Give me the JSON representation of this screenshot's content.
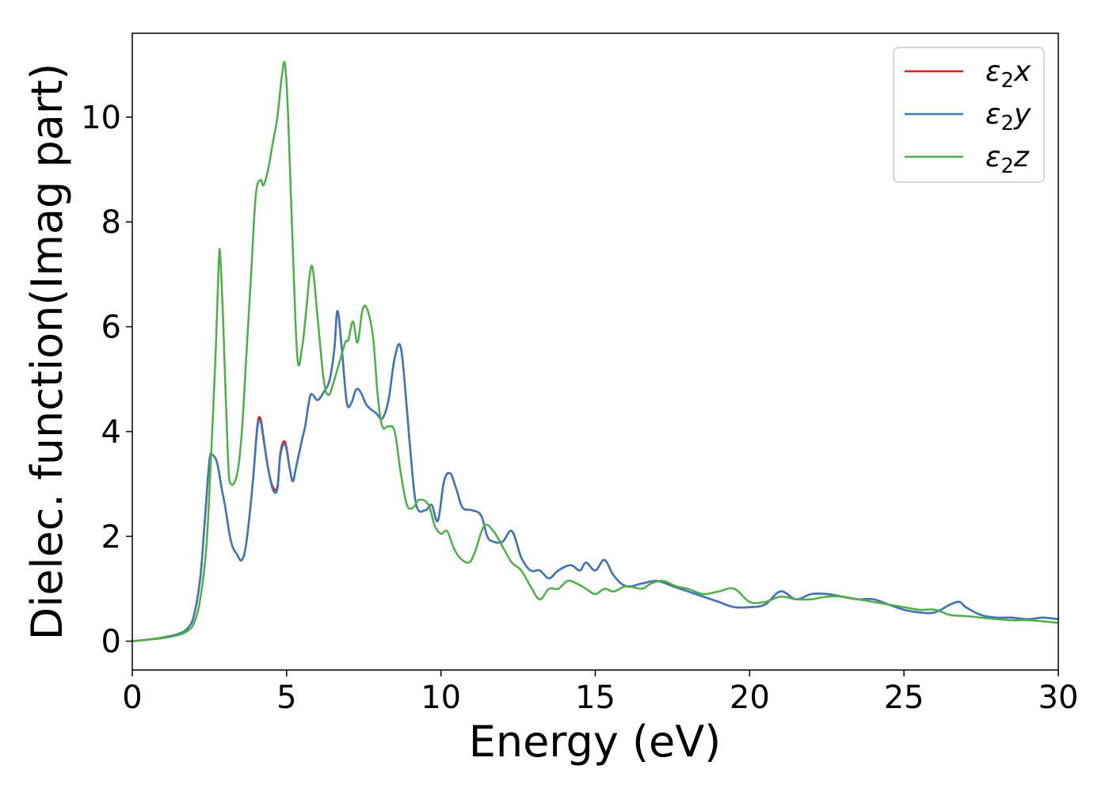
{
  "chart_data": {
    "type": "line",
    "title": "",
    "xlabel": "Energy (eV)",
    "ylabel": "Dielec. function(Imag part)",
    "xlim": [
      0,
      30
    ],
    "ylim": [
      -0.55,
      11.6
    ],
    "xticks": [
      0,
      5,
      10,
      15,
      20,
      25,
      30
    ],
    "yticks": [
      0,
      2,
      4,
      6,
      8,
      10
    ],
    "grid": false,
    "legend_position": "top-right",
    "series": [
      {
        "name": "ε2x",
        "legend_base": "ε",
        "legend_sub": "2",
        "legend_suffix": "x",
        "color": "#e41a1c",
        "x": [
          0,
          0.5,
          1.0,
          1.5,
          1.8,
          2.0,
          2.2,
          2.35,
          2.5,
          2.6,
          2.75,
          2.9,
          3.0,
          3.2,
          3.4,
          3.55,
          3.7,
          3.9,
          4.05,
          4.15,
          4.25,
          4.4,
          4.55,
          4.7,
          4.8,
          4.95,
          5.1,
          5.2,
          5.3,
          5.5,
          5.6,
          5.75,
          5.85,
          6.0,
          6.2,
          6.4,
          6.55,
          6.65,
          6.8,
          6.95,
          7.1,
          7.25,
          7.4,
          7.6,
          7.9,
          8.1,
          8.3,
          8.5,
          8.7,
          8.9,
          9.0,
          9.2,
          9.5,
          9.7,
          9.9,
          10.1,
          10.3,
          10.5,
          10.7,
          11.0,
          11.3,
          11.5,
          11.7,
          12.0,
          12.3,
          12.6,
          12.9,
          13.2,
          13.5,
          13.8,
          14.2,
          14.5,
          14.7,
          15.0,
          15.3,
          15.6,
          16.0,
          16.5,
          17.0,
          17.5,
          18.0,
          18.5,
          19.0,
          19.5,
          20.0,
          20.5,
          21.0,
          21.5,
          22.0,
          22.5,
          23.0,
          23.5,
          24.0,
          24.5,
          25.0,
          25.5,
          26.0,
          26.5,
          26.8,
          27.0,
          27.5,
          28.0,
          28.5,
          29.0,
          29.5,
          30.0
        ],
        "values": [
          0.0,
          0.03,
          0.07,
          0.14,
          0.25,
          0.5,
          1.2,
          2.3,
          3.45,
          3.55,
          3.4,
          2.9,
          2.6,
          1.9,
          1.65,
          1.55,
          1.9,
          3.0,
          4.1,
          4.25,
          3.9,
          3.3,
          2.95,
          2.95,
          3.6,
          3.8,
          3.3,
          3.05,
          3.3,
          3.85,
          4.1,
          4.65,
          4.7,
          4.6,
          4.75,
          5.0,
          5.6,
          6.3,
          5.5,
          4.55,
          4.55,
          4.8,
          4.75,
          4.5,
          4.35,
          4.25,
          4.6,
          5.4,
          5.6,
          4.4,
          3.7,
          2.6,
          2.5,
          2.6,
          2.3,
          3.05,
          3.2,
          2.9,
          2.55,
          2.5,
          2.4,
          2.0,
          1.9,
          1.9,
          2.1,
          1.6,
          1.35,
          1.35,
          1.2,
          1.35,
          1.45,
          1.35,
          1.5,
          1.35,
          1.55,
          1.25,
          1.05,
          1.1,
          1.15,
          1.05,
          0.95,
          0.85,
          0.75,
          0.65,
          0.65,
          0.7,
          0.95,
          0.8,
          0.9,
          0.9,
          0.85,
          0.8,
          0.8,
          0.7,
          0.6,
          0.55,
          0.55,
          0.7,
          0.75,
          0.65,
          0.5,
          0.45,
          0.45,
          0.42,
          0.45,
          0.42
        ]
      },
      {
        "name": "ε2y",
        "legend_base": "ε",
        "legend_sub": "2",
        "legend_suffix": "y",
        "color": "#3a78b7",
        "x": [
          0,
          0.5,
          1.0,
          1.5,
          1.8,
          2.0,
          2.2,
          2.35,
          2.5,
          2.6,
          2.75,
          2.9,
          3.0,
          3.2,
          3.4,
          3.55,
          3.7,
          3.9,
          4.05,
          4.15,
          4.25,
          4.4,
          4.55,
          4.7,
          4.8,
          4.95,
          5.1,
          5.2,
          5.3,
          5.5,
          5.6,
          5.75,
          5.85,
          6.0,
          6.2,
          6.4,
          6.55,
          6.65,
          6.8,
          6.95,
          7.1,
          7.25,
          7.4,
          7.6,
          7.9,
          8.1,
          8.3,
          8.5,
          8.7,
          8.9,
          9.0,
          9.2,
          9.5,
          9.7,
          9.9,
          10.1,
          10.3,
          10.5,
          10.7,
          11.0,
          11.3,
          11.5,
          11.7,
          12.0,
          12.3,
          12.6,
          12.9,
          13.2,
          13.5,
          13.8,
          14.2,
          14.5,
          14.7,
          15.0,
          15.3,
          15.6,
          16.0,
          16.5,
          17.0,
          17.5,
          18.0,
          18.5,
          19.0,
          19.5,
          20.0,
          20.5,
          21.0,
          21.5,
          22.0,
          22.5,
          23.0,
          23.5,
          24.0,
          24.5,
          25.0,
          25.5,
          26.0,
          26.5,
          26.8,
          27.0,
          27.5,
          28.0,
          28.5,
          29.0,
          29.5,
          30.0
        ],
        "values": [
          0.0,
          0.03,
          0.07,
          0.14,
          0.25,
          0.5,
          1.2,
          2.3,
          3.45,
          3.55,
          3.4,
          2.9,
          2.6,
          1.9,
          1.65,
          1.55,
          1.9,
          3.0,
          4.05,
          4.2,
          3.85,
          3.3,
          2.9,
          2.9,
          3.55,
          3.75,
          3.3,
          3.05,
          3.3,
          3.85,
          4.1,
          4.65,
          4.7,
          4.6,
          4.75,
          5.0,
          5.6,
          6.3,
          5.5,
          4.55,
          4.55,
          4.8,
          4.75,
          4.5,
          4.35,
          4.25,
          4.6,
          5.4,
          5.6,
          4.4,
          3.7,
          2.6,
          2.5,
          2.6,
          2.3,
          3.05,
          3.2,
          2.9,
          2.55,
          2.5,
          2.4,
          2.0,
          1.9,
          1.9,
          2.1,
          1.6,
          1.35,
          1.35,
          1.2,
          1.35,
          1.45,
          1.35,
          1.5,
          1.35,
          1.55,
          1.25,
          1.05,
          1.1,
          1.15,
          1.05,
          0.95,
          0.85,
          0.75,
          0.65,
          0.65,
          0.7,
          0.95,
          0.8,
          0.9,
          0.9,
          0.85,
          0.8,
          0.8,
          0.7,
          0.6,
          0.55,
          0.55,
          0.7,
          0.75,
          0.65,
          0.5,
          0.45,
          0.45,
          0.42,
          0.45,
          0.42
        ]
      },
      {
        "name": "ε2z",
        "legend_base": "ε",
        "legend_sub": "2",
        "legend_suffix": "z",
        "color": "#4daf4a",
        "x": [
          0,
          0.5,
          1.0,
          1.5,
          1.8,
          2.0,
          2.2,
          2.4,
          2.55,
          2.7,
          2.8,
          2.85,
          2.95,
          3.1,
          3.2,
          3.4,
          3.55,
          3.7,
          3.85,
          4.0,
          4.15,
          4.25,
          4.4,
          4.55,
          4.7,
          4.85,
          4.95,
          5.05,
          5.2,
          5.35,
          5.5,
          5.65,
          5.75,
          5.85,
          6.0,
          6.2,
          6.35,
          6.5,
          6.7,
          6.9,
          7.0,
          7.15,
          7.3,
          7.45,
          7.6,
          7.8,
          7.95,
          8.1,
          8.3,
          8.5,
          8.7,
          8.9,
          9.1,
          9.3,
          9.6,
          9.8,
          10.0,
          10.2,
          10.4,
          10.6,
          10.9,
          11.1,
          11.4,
          11.7,
          12.0,
          12.3,
          12.6,
          12.9,
          13.2,
          13.5,
          13.8,
          14.1,
          14.4,
          14.7,
          15.0,
          15.3,
          15.6,
          16.0,
          16.5,
          16.8,
          17.2,
          17.6,
          18.0,
          18.5,
          19.0,
          19.5,
          20.0,
          20.5,
          21.0,
          21.5,
          22.0,
          22.5,
          23.0,
          23.5,
          24.0,
          24.5,
          25.0,
          25.5,
          26.0,
          26.5,
          27.0,
          27.5,
          28.0,
          28.5,
          29.0,
          29.5,
          30.0
        ],
        "values": [
          0.0,
          0.03,
          0.06,
          0.12,
          0.2,
          0.35,
          0.8,
          1.8,
          3.5,
          5.5,
          7.2,
          7.35,
          6.0,
          3.5,
          3.0,
          3.2,
          4.0,
          5.5,
          7.0,
          8.5,
          8.8,
          8.7,
          9.0,
          9.5,
          10.0,
          10.8,
          11.0,
          10.0,
          7.5,
          5.4,
          5.6,
          6.4,
          7.0,
          7.1,
          6.2,
          5.0,
          4.7,
          4.9,
          5.3,
          5.7,
          5.75,
          6.1,
          5.7,
          6.3,
          6.35,
          5.8,
          4.7,
          4.1,
          4.1,
          4.0,
          3.2,
          2.6,
          2.55,
          2.7,
          2.6,
          2.2,
          2.05,
          2.1,
          1.8,
          1.6,
          1.5,
          1.7,
          2.2,
          2.1,
          1.8,
          1.5,
          1.35,
          1.05,
          0.8,
          1.0,
          1.0,
          1.15,
          1.1,
          1.0,
          0.9,
          1.0,
          0.95,
          1.05,
          1.0,
          1.1,
          1.15,
          1.05,
          1.0,
          0.9,
          0.95,
          1.0,
          0.75,
          0.75,
          0.85,
          0.8,
          0.8,
          0.85,
          0.85,
          0.8,
          0.75,
          0.7,
          0.65,
          0.6,
          0.6,
          0.5,
          0.48,
          0.45,
          0.42,
          0.4,
          0.4,
          0.38,
          0.35
        ]
      }
    ]
  }
}
